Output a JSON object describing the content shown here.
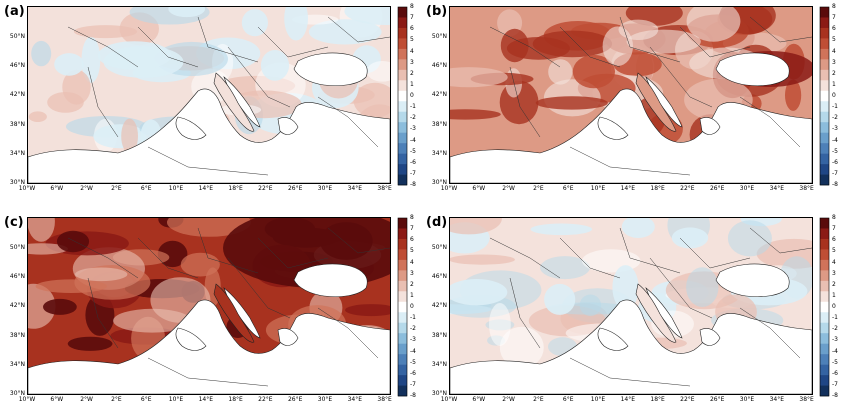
{
  "panels": [
    {
      "id": "a",
      "label": "(a)",
      "intensity": "weak-mixed"
    },
    {
      "id": "b",
      "label": "(b)",
      "intensity": "moderate-warm"
    },
    {
      "id": "c",
      "label": "(c)",
      "intensity": "strong-warm"
    },
    {
      "id": "d",
      "label": "(d)",
      "intensity": "weak-mixed-2"
    }
  ],
  "lat_labels": [
    "50°N",
    "46°N",
    "42°N",
    "38°N",
    "34°N",
    "30°N"
  ],
  "lon_labels": [
    "10°W",
    "6°W",
    "2°W",
    "2°E",
    "6°E",
    "10°E",
    "14°E",
    "18°E",
    "22°E",
    "26°E",
    "30°E",
    "34°E",
    "38°E"
  ],
  "colorbar": {
    "ticks": [
      "8",
      "7",
      "6",
      "5",
      "4",
      "3",
      "2",
      "1",
      "0",
      "-1",
      "-2",
      "-3",
      "-4",
      "-5",
      "-6",
      "-7",
      "-8"
    ],
    "colors": [
      "#5a0b0b",
      "#8b1a15",
      "#a8321f",
      "#bf4e35",
      "#d0735a",
      "#dd9a85",
      "#e9bfb2",
      "#f4e2dc",
      "#ffffff",
      "#dbeef6",
      "#b5d9ea",
      "#8cbddc",
      "#6a9fcb",
      "#4d80b8",
      "#3463a2",
      "#1f4685",
      "#12305c"
    ]
  }
}
